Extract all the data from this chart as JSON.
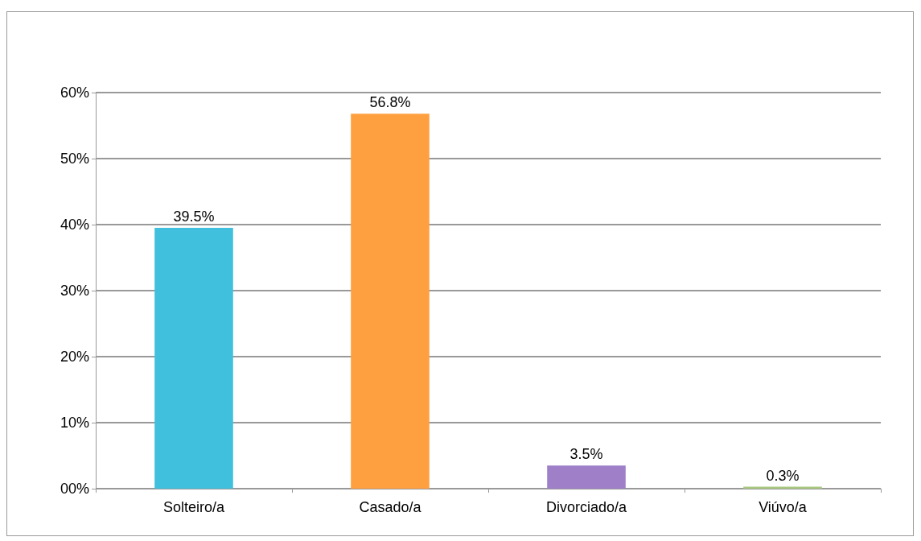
{
  "chart_data": {
    "type": "bar",
    "categories": [
      "Solteiro/a",
      "Casado/a",
      "Divorciado/a",
      "Viúvo/a"
    ],
    "values": [
      39.5,
      56.8,
      3.5,
      0.3
    ],
    "colors": [
      "#40c0dc",
      "#ffa040",
      "#9f80c8",
      "#a8c880"
    ],
    "value_labels": [
      "39.5%",
      "56.8%",
      "3.5%",
      "0.3%"
    ],
    "ylim": [
      0,
      60
    ],
    "yticks": [
      {
        "value": 0,
        "label": "00%"
      },
      {
        "value": 10,
        "label": "10%"
      },
      {
        "value": 20,
        "label": "20%"
      },
      {
        "value": 30,
        "label": "30%"
      },
      {
        "value": 40,
        "label": "40%"
      },
      {
        "value": 50,
        "label": "50%"
      },
      {
        "value": 60,
        "label": "60%"
      }
    ],
    "grid": true
  }
}
